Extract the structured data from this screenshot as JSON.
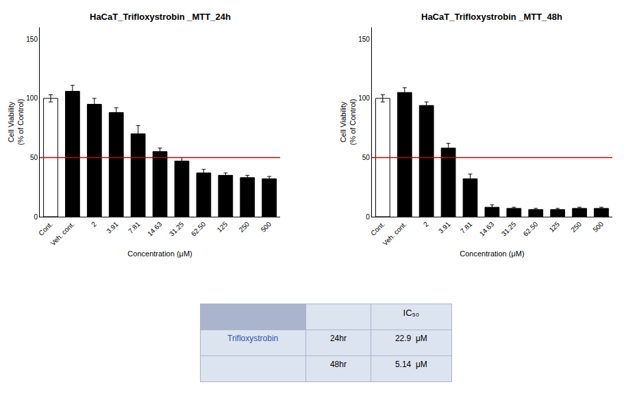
{
  "chart_data": [
    {
      "type": "bar",
      "title": "HaCaT_Trifloxystrobin _MTT_24h",
      "categories": [
        "Cont.",
        "Veh. cont.",
        "2",
        "3.91",
        "7.81",
        "14.63",
        "31.25",
        "62.50",
        "125",
        "250",
        "500"
      ],
      "values": [
        100,
        106,
        95,
        88,
        70,
        55,
        47,
        37,
        35,
        33,
        32
      ],
      "errors": [
        3,
        5,
        5,
        4,
        7,
        3,
        3,
        3,
        2,
        2,
        2
      ],
      "colors": [
        "white",
        "black",
        "black",
        "black",
        "black",
        "black",
        "black",
        "black",
        "black",
        "black",
        "black"
      ],
      "edge_color": "black",
      "xlabel": "Concentration (μM)",
      "ylabel": "Cell Viability\n(% of Control)",
      "ylim": [
        0,
        160
      ],
      "yticks": [
        0,
        50,
        100,
        150
      ],
      "grid": false,
      "reference_line": {
        "value": 50,
        "color": "#cc0000"
      }
    },
    {
      "type": "bar",
      "title": "HaCaT_Trifloxystrobin _MTT_48h",
      "categories": [
        "Cont.",
        "Veh. cont.",
        "2",
        "3.91",
        "7.81",
        "14.63",
        "31.25",
        "62.50",
        "125",
        "250",
        "500"
      ],
      "values": [
        100,
        105,
        94,
        58,
        32,
        8,
        7,
        6,
        6,
        7,
        7
      ],
      "errors": [
        3,
        4,
        3,
        4,
        4,
        2,
        1,
        1,
        1,
        1,
        1
      ],
      "colors": [
        "white",
        "black",
        "black",
        "black",
        "black",
        "black",
        "black",
        "black",
        "black",
        "black",
        "black"
      ],
      "edge_color": "black",
      "xlabel": "Concentration (μM)",
      "ylabel": "Cell Viability\n(% of Control)",
      "ylim": [
        0,
        160
      ],
      "yticks": [
        0,
        50,
        100,
        150
      ],
      "grid": false,
      "reference_line": {
        "value": 50,
        "color": "#cc0000"
      }
    },
    {
      "type": "table",
      "title": "IC₅₀",
      "annotations": [
        "Trifloxystrobin"
      ],
      "categories": [
        "24hr",
        "48hr"
      ],
      "values": [
        22.9,
        5.14
      ],
      "value_labels": [
        "22.9  μM",
        "5.14  μM"
      ],
      "color": "#dce4f0",
      "edge_color": "#aab4cc"
    }
  ]
}
